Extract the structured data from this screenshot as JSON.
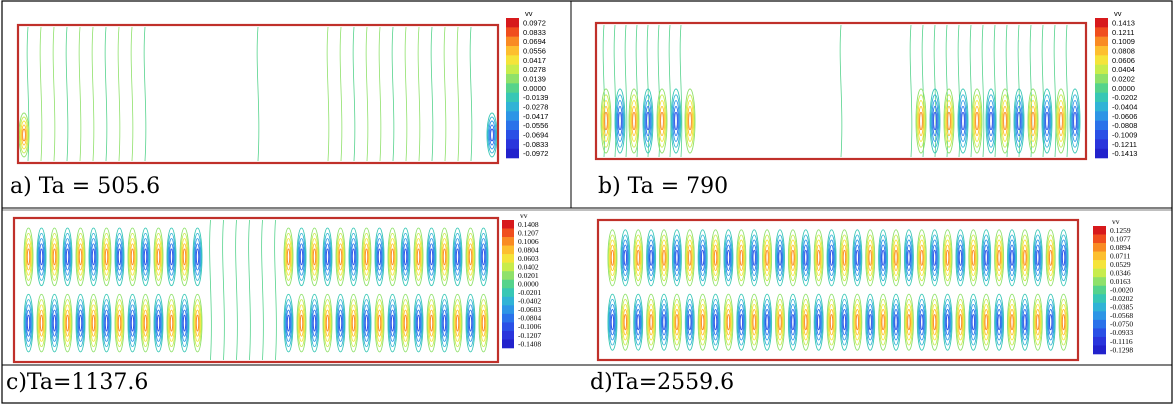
{
  "panels": [
    {
      "id": "a",
      "caption": "a) Ta = 505.6",
      "legend_title": "vv",
      "legend": [
        "0.0972",
        "0.0833",
        "0.0694",
        "0.0556",
        "0.0417",
        "0.0278",
        "0.0139",
        "0.0000",
        "-0.0139",
        "-0.0278",
        "-0.0417",
        "-0.0556",
        "-0.0694",
        "-0.0833",
        "-0.0972"
      ]
    },
    {
      "id": "b",
      "caption": "b) Ta = 790",
      "legend_title": "vv",
      "legend": [
        "0.1413",
        "0.1211",
        "0.1009",
        "0.0808",
        "0.0606",
        "0.0404",
        "0.0202",
        "0.0000",
        "-0.0202",
        "-0.0404",
        "-0.0606",
        "-0.0808",
        "-0.1009",
        "-0.1211",
        "-0.1413"
      ]
    },
    {
      "id": "c",
      "caption": "c)Ta=1137.6",
      "legend_title": "vv",
      "legend": [
        "0.1408",
        "0.1207",
        "0.1006",
        "0.0804",
        "0.0603",
        "0.0402",
        "0.0201",
        "0.0000",
        "-0.0201",
        "-0.0402",
        "-0.0603",
        "-0.0804",
        "-0.1006",
        "-0.1207",
        "-0.1408"
      ]
    },
    {
      "id": "d",
      "caption": "d)Ta=2559.6",
      "legend_title": "vv",
      "legend": [
        "0.1259",
        "0.1077",
        "0.0894",
        "0.0711",
        "0.0529",
        "0.0346",
        "0.0163",
        "-0.0020",
        "-0.0202",
        "-0.0385",
        "-0.0568",
        "-0.0750",
        "-0.0933",
        "-0.1116",
        "-0.1298"
      ]
    }
  ],
  "colors": {
    "border": "#c0302a",
    "scale": [
      "#d7191c",
      "#f04e1e",
      "#f98b23",
      "#fdbf2f",
      "#f5e43a",
      "#c8ec4c",
      "#8fe16a",
      "#55d38c",
      "#37c7b5",
      "#30b3d6",
      "#2d95e6",
      "#2a72ea",
      "#2a50e6",
      "#2a35dc",
      "#2222cc"
    ]
  }
}
